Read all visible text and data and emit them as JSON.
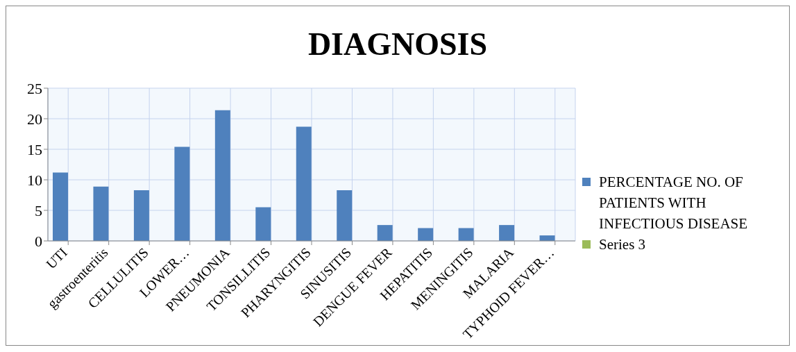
{
  "chart_data": {
    "type": "bar",
    "title": "DIAGNOSIS",
    "categories": [
      "UTI",
      "gastroenteritis",
      "CELLULITIS",
      "LOWER…",
      "PNEUMONIA",
      "TONSILLITIS",
      "PHARYNGITIS",
      "SINUSITIS",
      "DENGUE FEVER",
      "HEPATITIS",
      "MENINGITIS",
      "MALARIA",
      "TYPHOID FEVER…"
    ],
    "series": [
      {
        "name": "PERCENTAGE NO. OF PATIENTS WITH INFECTIOUS DISEASE",
        "color": "#4f81bd",
        "values": [
          11.2,
          8.9,
          8.3,
          15.4,
          21.4,
          5.5,
          18.7,
          8.3,
          2.6,
          2.1,
          2.1,
          2.6,
          0.9
        ]
      },
      {
        "name": "Series 3",
        "color": "#9bbb59",
        "values": [
          null,
          null,
          null,
          null,
          null,
          null,
          null,
          null,
          null,
          null,
          null,
          null,
          null
        ]
      }
    ],
    "ylim": [
      0,
      25
    ],
    "yticks": [
      0,
      5,
      10,
      15,
      20,
      25
    ],
    "grid": true,
    "legend": "right"
  }
}
